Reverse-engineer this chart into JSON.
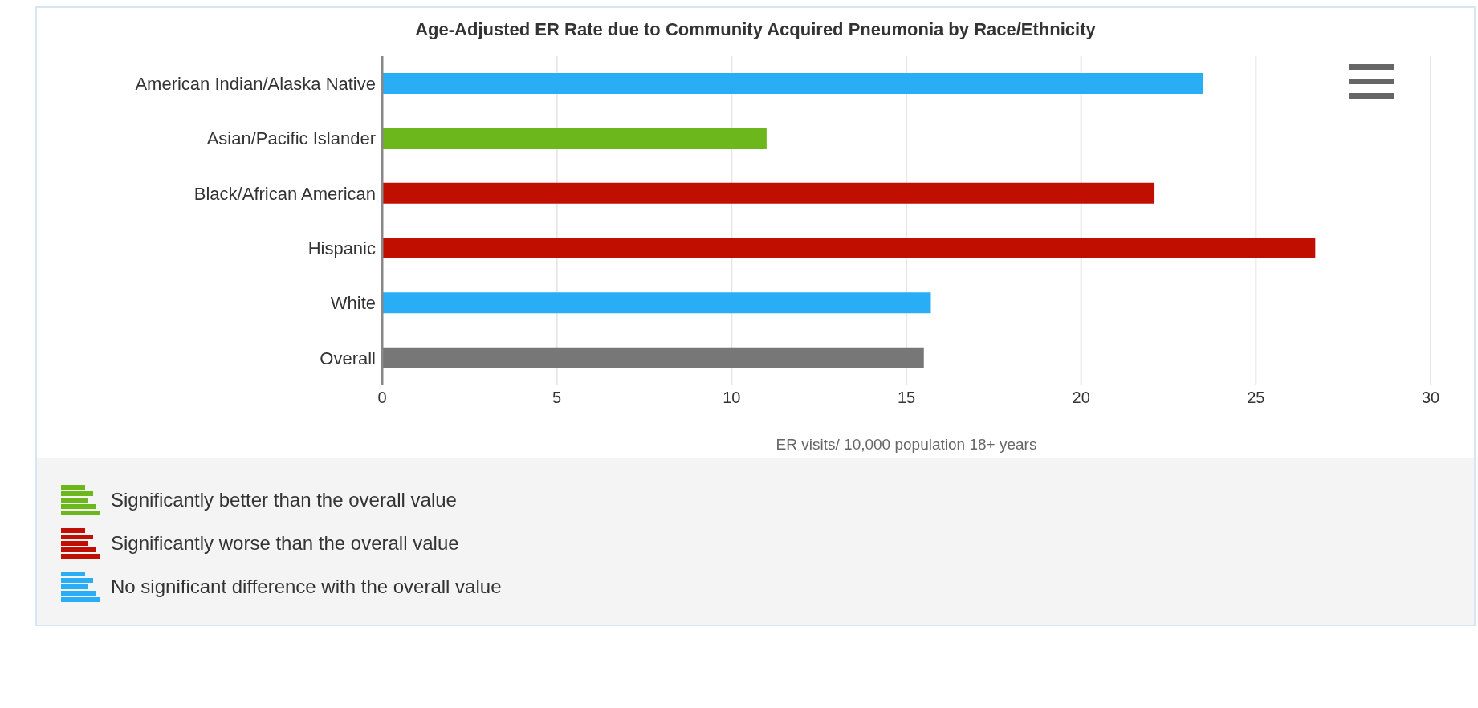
{
  "chart_data": {
    "type": "bar",
    "orientation": "horizontal",
    "title": "Age-Adjusted ER Rate due to Community Acquired Pneumonia by Race/Ethnicity",
    "xlabel": "ER visits/ 10,000 population 18+ years",
    "categories": [
      "American Indian/Alaska Native",
      "Asian/Pacific Islander",
      "Black/African American",
      "Hispanic",
      "White",
      "Overall"
    ],
    "values": [
      23.5,
      11.0,
      22.1,
      26.7,
      15.7,
      15.5
    ],
    "colors": [
      "#29aef5",
      "#6cb71c",
      "#c00f00",
      "#c00f00",
      "#29aef5",
      "#777777"
    ],
    "xlim": [
      0,
      30
    ],
    "xticks": [
      0,
      5,
      10,
      15,
      20,
      25,
      30
    ],
    "grid": "x",
    "annotations": [
      "Significantly better than the overall value",
      "Significantly worse than the overall value",
      "No significant difference with the overall value"
    ]
  }
}
